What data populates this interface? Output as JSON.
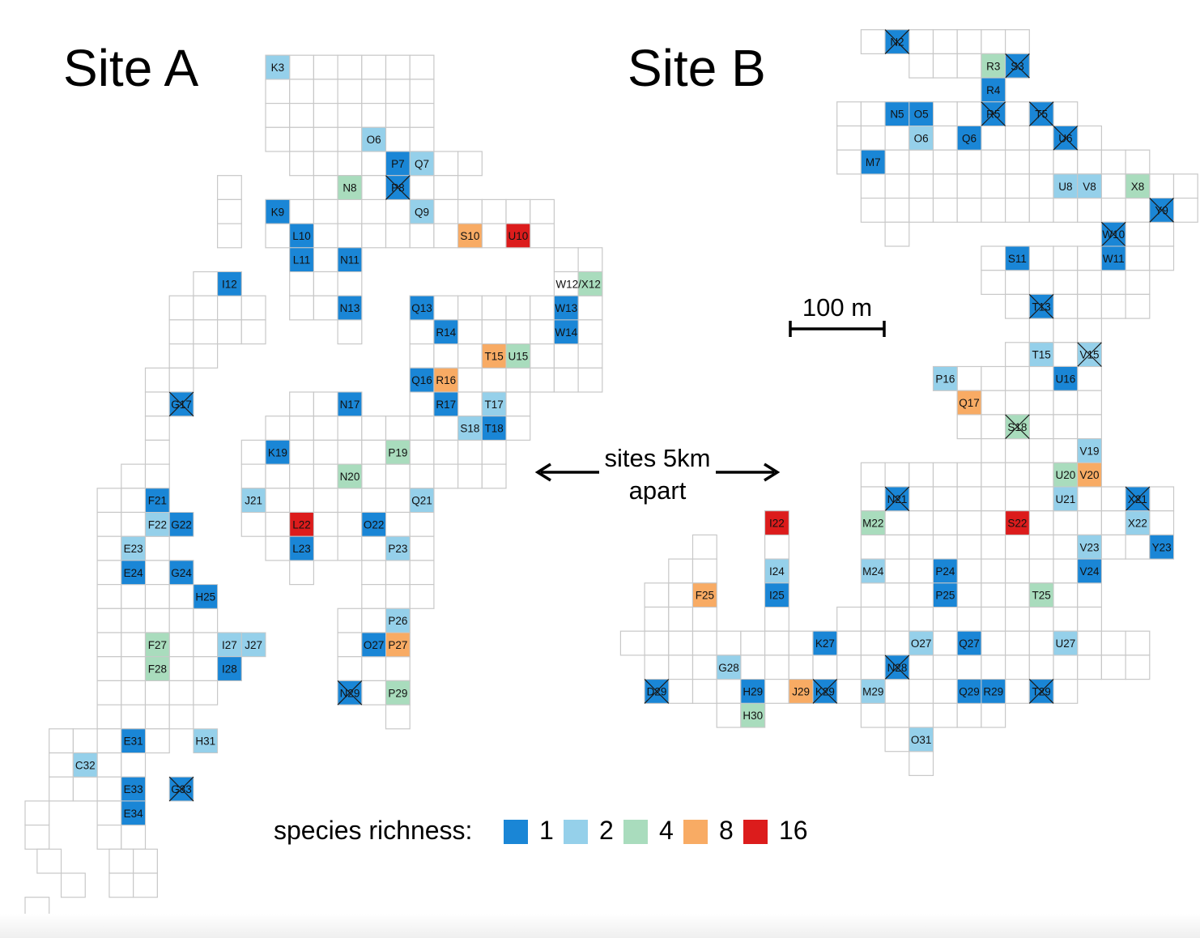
{
  "titles": {
    "site_a": "Site A",
    "site_b": "Site B"
  },
  "scale_bar": {
    "label": "100 m"
  },
  "distance_note": {
    "line1": "sites 5km",
    "line2": "apart"
  },
  "legend": {
    "label": "species richness:",
    "items": [
      {
        "value": "1",
        "color": "#1a86d6"
      },
      {
        "value": "2",
        "color": "#95d0ea"
      },
      {
        "value": "4",
        "color": "#a9dcbd"
      },
      {
        "value": "8",
        "color": "#f8ab64"
      },
      {
        "value": "16",
        "color": "#dc1c1c"
      }
    ]
  },
  "cells": {
    "site_a": [
      {
        "id": "K3",
        "richness": 2
      },
      {
        "id": "O6",
        "richness": 2
      },
      {
        "id": "P7",
        "richness": 1
      },
      {
        "id": "Q7",
        "richness": 2
      },
      {
        "id": "N8",
        "richness": 4
      },
      {
        "id": "P8",
        "richness": 1,
        "label": "P8",
        "crossed": true
      },
      {
        "id": "K9",
        "richness": 1
      },
      {
        "id": "Q9",
        "richness": 2
      },
      {
        "id": "L10",
        "richness": 1
      },
      {
        "id": "S10",
        "richness": 8
      },
      {
        "id": "U10",
        "richness": 16
      },
      {
        "id": "L11",
        "richness": 1
      },
      {
        "id": "N11",
        "richness": 1
      },
      {
        "id": "I12",
        "richness": 1
      },
      {
        "id": "W12/X12",
        "richness": 4
      },
      {
        "id": "N13",
        "richness": 1
      },
      {
        "id": "Q13",
        "richness": 1
      },
      {
        "id": "W13",
        "richness": 1
      },
      {
        "id": "R14",
        "richness": 1
      },
      {
        "id": "W14",
        "richness": 1
      },
      {
        "id": "T15",
        "richness": 8
      },
      {
        "id": "U15",
        "richness": 4
      },
      {
        "id": "Q16",
        "richness": 1
      },
      {
        "id": "R16",
        "richness": 8
      },
      {
        "id": "G17",
        "richness": 1,
        "label": "G17",
        "crossed": true
      },
      {
        "id": "N17",
        "richness": 1
      },
      {
        "id": "R17",
        "richness": 1
      },
      {
        "id": "T17",
        "richness": 2
      },
      {
        "id": "S18",
        "richness": 2
      },
      {
        "id": "T18",
        "richness": 1
      },
      {
        "id": "K19",
        "richness": 1
      },
      {
        "id": "P19",
        "richness": 4
      },
      {
        "id": "N20",
        "richness": 4
      },
      {
        "id": "F21",
        "richness": 1
      },
      {
        "id": "J21",
        "richness": 2
      },
      {
        "id": "Q21",
        "richness": 2
      },
      {
        "id": "F22",
        "richness": 2
      },
      {
        "id": "G22",
        "richness": 1
      },
      {
        "id": "L22",
        "richness": 16
      },
      {
        "id": "O22",
        "richness": 1
      },
      {
        "id": "E23",
        "richness": 2
      },
      {
        "id": "L23",
        "richness": 1
      },
      {
        "id": "P23",
        "richness": 2
      },
      {
        "id": "E24",
        "richness": 1
      },
      {
        "id": "G24",
        "richness": 1
      },
      {
        "id": "H25",
        "richness": 1
      },
      {
        "id": "P26",
        "richness": 2
      },
      {
        "id": "F27",
        "richness": 4
      },
      {
        "id": "I27",
        "richness": 2
      },
      {
        "id": "J27",
        "richness": 2
      },
      {
        "id": "O27",
        "richness": 1
      },
      {
        "id": "P27",
        "richness": 8
      },
      {
        "id": "F28",
        "richness": 4
      },
      {
        "id": "I28",
        "richness": 1
      },
      {
        "id": "N29",
        "richness": 1,
        "label": "N29",
        "crossed": true
      },
      {
        "id": "P29",
        "richness": 4
      },
      {
        "id": "E31",
        "richness": 1
      },
      {
        "id": "H31",
        "richness": 2
      },
      {
        "id": "C32",
        "richness": 2
      },
      {
        "id": "E33",
        "richness": 1
      },
      {
        "id": "G33",
        "richness": 1,
        "label": "G33",
        "crossed": true
      },
      {
        "id": "E34",
        "richness": 1
      }
    ],
    "site_b": [
      {
        "id": "N2",
        "richness": 1,
        "label": "N2",
        "crossed": true
      },
      {
        "id": "R3",
        "richness": 4
      },
      {
        "id": "S3",
        "richness": 1,
        "label": "S3",
        "crossed": true
      },
      {
        "id": "R4",
        "richness": 1
      },
      {
        "id": "N5",
        "richness": 1
      },
      {
        "id": "O5",
        "richness": 1
      },
      {
        "id": "R5",
        "richness": 1,
        "label": "R5",
        "crossed": true
      },
      {
        "id": "T5",
        "richness": 1,
        "label": "T5",
        "crossed": true
      },
      {
        "id": "O6",
        "richness": 2
      },
      {
        "id": "Q6",
        "richness": 1
      },
      {
        "id": "U6",
        "richness": 1,
        "label": "U6",
        "crossed": true
      },
      {
        "id": "M7",
        "richness": 1
      },
      {
        "id": "U8",
        "richness": 2
      },
      {
        "id": "V8",
        "richness": 2
      },
      {
        "id": "X8",
        "richness": 4
      },
      {
        "id": "Y9",
        "richness": 1,
        "label": "Y9",
        "crossed": true
      },
      {
        "id": "W10",
        "richness": 1,
        "label": "W10",
        "crossed": true
      },
      {
        "id": "S11",
        "richness": 1
      },
      {
        "id": "W11",
        "richness": 1
      },
      {
        "id": "T13",
        "richness": 1,
        "label": "T13",
        "crossed": true
      },
      {
        "id": "T15",
        "richness": 2
      },
      {
        "id": "V15",
        "richness": 2,
        "label": "V15",
        "crossed": true
      },
      {
        "id": "P16",
        "richness": 2
      },
      {
        "id": "U16",
        "richness": 1
      },
      {
        "id": "Q17",
        "richness": 8
      },
      {
        "id": "S18",
        "richness": 4,
        "label": "S18",
        "crossed": true
      },
      {
        "id": "V19",
        "richness": 2
      },
      {
        "id": "U20",
        "richness": 4
      },
      {
        "id": "V20",
        "richness": 8
      },
      {
        "id": "N21",
        "richness": 1,
        "label": "N21",
        "crossed": true
      },
      {
        "id": "U21",
        "richness": 2
      },
      {
        "id": "X21",
        "richness": 1,
        "label": "X21",
        "crossed": true
      },
      {
        "id": "I22",
        "richness": 16
      },
      {
        "id": "M22",
        "richness": 4
      },
      {
        "id": "S22",
        "richness": 16
      },
      {
        "id": "X22",
        "richness": 2
      },
      {
        "id": "V23",
        "richness": 2
      },
      {
        "id": "Y23",
        "richness": 1
      },
      {
        "id": "I24",
        "richness": 2
      },
      {
        "id": "M24",
        "richness": 2
      },
      {
        "id": "P24",
        "richness": 1
      },
      {
        "id": "V24",
        "richness": 1
      },
      {
        "id": "F25",
        "richness": 8
      },
      {
        "id": "I25",
        "richness": 1
      },
      {
        "id": "P25",
        "richness": 1
      },
      {
        "id": "T25",
        "richness": 4
      },
      {
        "id": "K27",
        "richness": 1
      },
      {
        "id": "O27",
        "richness": 2
      },
      {
        "id": "Q27",
        "richness": 1
      },
      {
        "id": "U27",
        "richness": 2
      },
      {
        "id": "G28",
        "richness": 2
      },
      {
        "id": "N28",
        "richness": 1,
        "label": "N28",
        "crossed": true
      },
      {
        "id": "D29",
        "richness": 1,
        "label": "D29",
        "crossed": true
      },
      {
        "id": "H29",
        "richness": 1
      },
      {
        "id": "J29",
        "richness": 8
      },
      {
        "id": "K29",
        "richness": 1,
        "label": "K29",
        "crossed": true
      },
      {
        "id": "M29",
        "richness": 2
      },
      {
        "id": "Q29",
        "richness": 1
      },
      {
        "id": "R29",
        "richness": 1
      },
      {
        "id": "T29",
        "richness": 1,
        "label": "T29",
        "crossed": true
      },
      {
        "id": "H30",
        "richness": 4
      },
      {
        "id": "O31",
        "richness": 2
      }
    ]
  }
}
